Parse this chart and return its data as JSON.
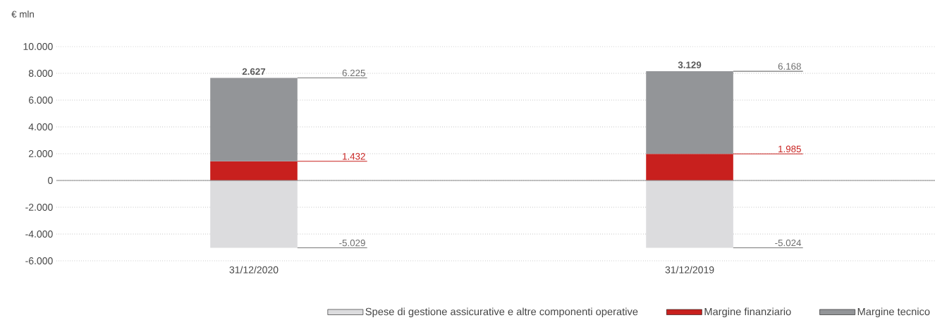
{
  "chart_data": {
    "type": "bar",
    "stacked": true,
    "ylabel": "€ mln",
    "categories": [
      "31/12/2020",
      "31/12/2019"
    ],
    "series": [
      {
        "name": "Spese di gestione assicurative e altre componenti operative",
        "color": "#dcdcde",
        "values": [
          -5029,
          -5024
        ],
        "value_labels": [
          "-5.029",
          "-5.024"
        ]
      },
      {
        "name": "Margine finanziario",
        "color": "#c8201e",
        "values": [
          1432,
          1985
        ],
        "value_labels": [
          "1.432",
          "1.985"
        ]
      },
      {
        "name": "Margine tecnico",
        "color": "#939598",
        "values": [
          6225,
          6168
        ],
        "value_labels": [
          "6.225",
          "6.168"
        ]
      }
    ],
    "totals": [
      "2.627",
      "3.129"
    ],
    "ylim": [
      -6000,
      10000
    ],
    "yticks": [
      {
        "value": -6000,
        "label": "-6.000"
      },
      {
        "value": -4000,
        "label": "-4.000"
      },
      {
        "value": -2000,
        "label": "-2.000"
      },
      0,
      {
        "value": 2000,
        "label": "2.000"
      },
      {
        "value": 4000,
        "label": "4.000"
      },
      {
        "value": 6000,
        "label": "6.000"
      },
      {
        "value": 8000,
        "label": "8.000"
      },
      {
        "value": 10000,
        "label": "10.000"
      }
    ],
    "grid": "y",
    "legend": "bottom right"
  }
}
